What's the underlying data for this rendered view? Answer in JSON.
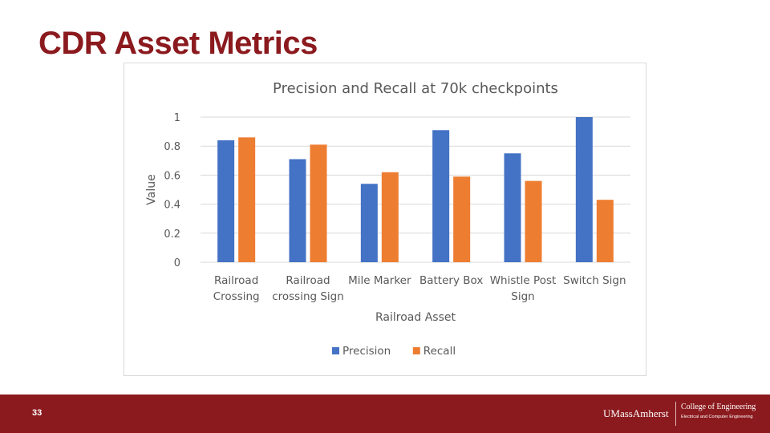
{
  "slide": {
    "title": "CDR Asset Metrics",
    "page_number": "33"
  },
  "footer": {
    "university": "UMassAmherst",
    "college": "College of Engineering",
    "department": "Electrical and Computer Engineering"
  },
  "chart_data": {
    "type": "bar",
    "title": "Precision and Recall at 70k checkpoints",
    "xlabel": "Railroad Asset",
    "ylabel": "Value",
    "categories": [
      [
        "Railroad",
        "Crossing"
      ],
      [
        "Railroad",
        "crossing Sign"
      ],
      [
        "Mile Marker"
      ],
      [
        "Battery Box"
      ],
      [
        "Whistle Post",
        "Sign"
      ],
      [
        "Switch Sign"
      ]
    ],
    "series": [
      {
        "name": "Precision",
        "color": "#4472c4",
        "values": [
          0.84,
          0.71,
          0.54,
          0.91,
          0.75,
          1.0
        ]
      },
      {
        "name": "Recall",
        "color": "#ed7d31",
        "values": [
          0.86,
          0.81,
          0.62,
          0.59,
          0.56,
          0.43
        ]
      }
    ],
    "ylim": [
      0,
      1
    ],
    "yticks": [
      "0",
      "0.2",
      "0.4",
      "0.6",
      "0.8",
      "1"
    ],
    "grid": true,
    "legend_position": "bottom"
  }
}
